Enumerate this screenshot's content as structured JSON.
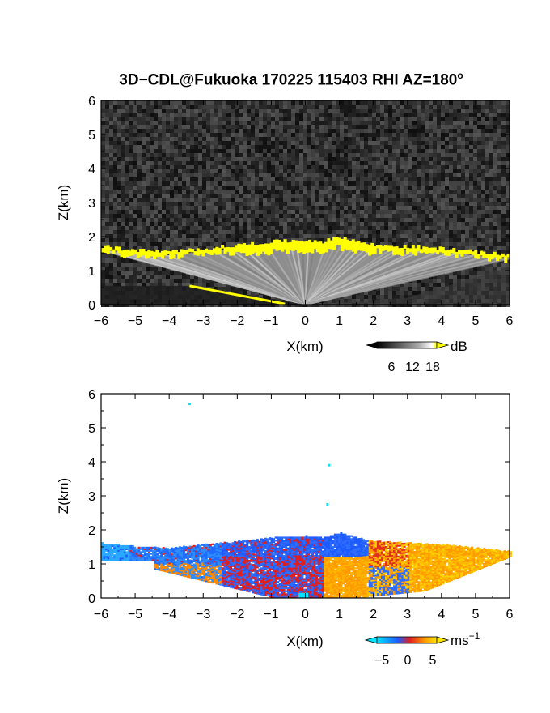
{
  "title": {
    "main": "3D−CDL@Fukuoka 170225 115403 RHI AZ=180",
    "degree": "o"
  },
  "chart_data": [
    {
      "type": "heatmap",
      "variable": "reflectivity",
      "xlabel": "X(km)",
      "ylabel": "Z(km)",
      "xlim": [
        -6,
        6
      ],
      "ylim": [
        0,
        6
      ],
      "xticks": [
        "−6",
        "−5",
        "−4",
        "−3",
        "−2",
        "−1",
        "0",
        "1",
        "2",
        "3",
        "4",
        "5",
        "6"
      ],
      "yticks": [
        "0",
        "1",
        "2",
        "3",
        "4",
        "5",
        "6"
      ],
      "background": "noise",
      "cloud_top_km": [
        [
          -6.0,
          1.7
        ],
        [
          -5.0,
          1.6
        ],
        [
          -4.0,
          1.55
        ],
        [
          -3.0,
          1.65
        ],
        [
          -2.0,
          1.75
        ],
        [
          -1.0,
          1.85
        ],
        [
          0.0,
          1.9
        ],
        [
          0.5,
          1.85
        ],
        [
          1.0,
          2.0
        ],
        [
          1.5,
          1.85
        ],
        [
          2.0,
          1.75
        ],
        [
          3.0,
          1.7
        ],
        [
          4.0,
          1.65
        ],
        [
          5.0,
          1.55
        ],
        [
          6.0,
          1.45
        ]
      ],
      "colorbar": {
        "unit": "dB",
        "ticks": [
          "6",
          "12",
          "18"
        ],
        "colors": [
          "#000000",
          "#555555",
          "#aaaaaa",
          "#ffffff",
          "#ffff00"
        ]
      }
    },
    {
      "type": "heatmap",
      "variable": "doppler_velocity",
      "xlabel": "X(km)",
      "ylabel": "Z(km)",
      "xlim": [
        -6,
        6
      ],
      "ylim": [
        0,
        6
      ],
      "xticks": [
        "−6",
        "−5",
        "−4",
        "−3",
        "−2",
        "−1",
        "0",
        "1",
        "2",
        "3",
        "4",
        "5",
        "6"
      ],
      "yticks": [
        "0",
        "1",
        "2",
        "3",
        "4",
        "5",
        "6"
      ],
      "scattered_points_km": [
        [
          -3.4,
          5.7
        ],
        [
          0.7,
          3.9
        ],
        [
          0.65,
          2.75
        ]
      ],
      "colorbar": {
        "unit": "ms",
        "unit_exp": "−1",
        "ticks": [
          "−5",
          "0",
          "5"
        ],
        "colors": [
          "#00e5ff",
          "#1e5bff",
          "#e02020",
          "#ff9a00",
          "#ffe400"
        ]
      }
    }
  ]
}
